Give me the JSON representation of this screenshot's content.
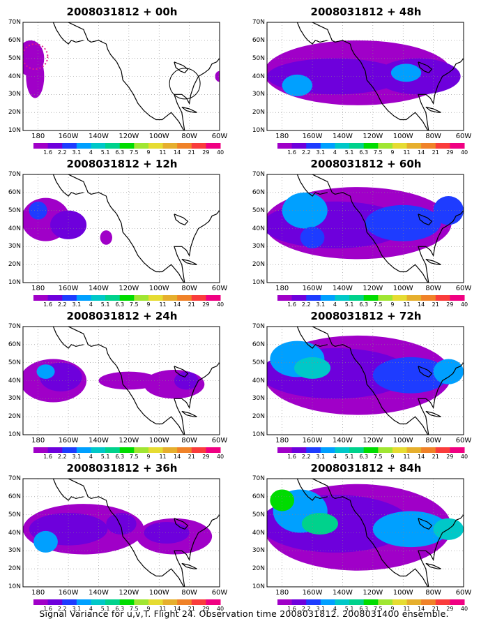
{
  "panels": [
    {
      "title": "2008031812 + 00h",
      "hour": "00"
    },
    {
      "title": "2008031812 + 48h",
      "hour": "48"
    },
    {
      "title": "2008031812 + 12h",
      "hour": "12"
    },
    {
      "title": "2008031812 + 60h",
      "hour": "60"
    },
    {
      "title": "2008031812 + 24h",
      "hour": "24"
    },
    {
      "title": "2008031812 + 72h",
      "hour": "72"
    },
    {
      "title": "2008031812 + 36h",
      "hour": "36"
    },
    {
      "title": "2008031812 + 84h",
      "hour": "84"
    }
  ],
  "lat_labels": [
    "70N",
    "60N",
    "50N",
    "40N",
    "30N",
    "20N",
    "10N"
  ],
  "lon_labels": [
    "180",
    "160W",
    "140W",
    "120W",
    "100W",
    "80W",
    "60W"
  ],
  "colorbar": {
    "labels": [
      "1.6",
      "2.2",
      "3.1",
      "4",
      "5.1",
      "6.3",
      "7.5",
      "9",
      "11",
      "14",
      "21",
      "29",
      "40"
    ],
    "colors": [
      "#a000c8",
      "#6e00dc",
      "#1e3cff",
      "#00a0ff",
      "#00c8c8",
      "#00d28c",
      "#00dc00",
      "#a0e632",
      "#e6dc32",
      "#e6af2d",
      "#f08228",
      "#fa3c3c",
      "#f00082"
    ]
  },
  "caption": "Signal Variance for u,v,T. Flight 24. Observation time 2008031812. 2008031400 ensemble.",
  "chart_data": {
    "type": "heatmap",
    "variable": "Signal Variance for u,v,T",
    "forecast_hours": [
      0,
      12,
      24,
      36,
      48,
      60,
      72,
      84
    ],
    "lat_range": [
      "10N",
      "70N"
    ],
    "lon_range": [
      "170E",
      "60W"
    ],
    "contour_levels": [
      1.6,
      2.2,
      3.1,
      4,
      5.1,
      6.3,
      7.5,
      9,
      11,
      14,
      21,
      29,
      40
    ]
  }
}
